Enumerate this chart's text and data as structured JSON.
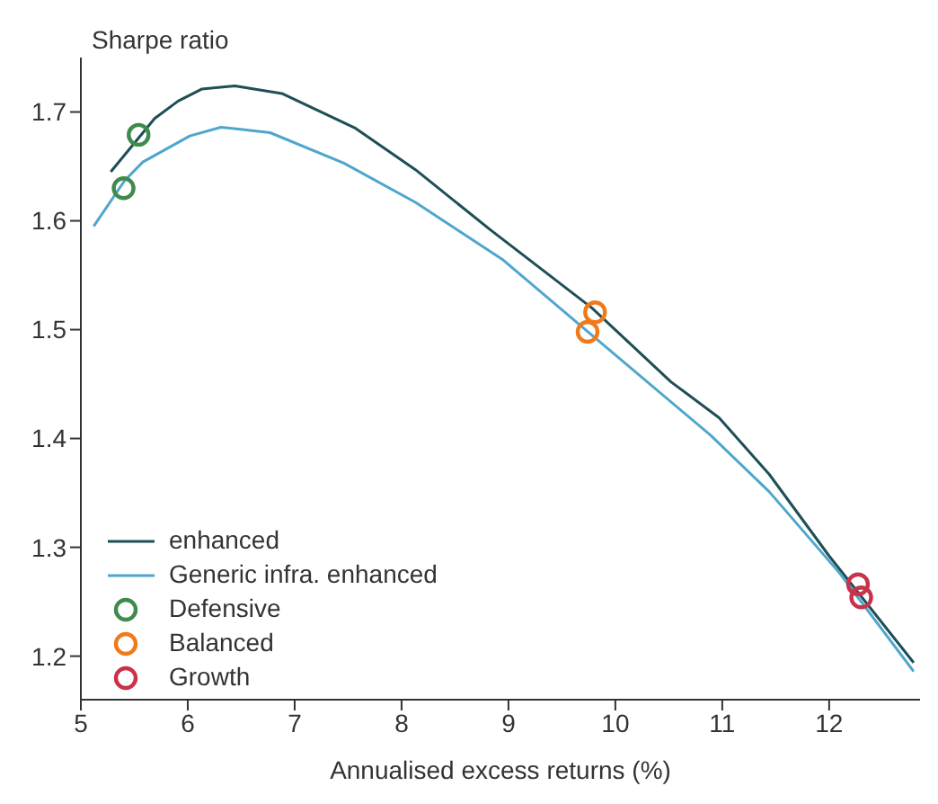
{
  "chart_data": {
    "type": "line",
    "ylabel": "Sharpe ratio",
    "xlabel": "Annualised excess returns (%)",
    "xlim": [
      5,
      12.85
    ],
    "ylim": [
      1.16,
      1.75
    ],
    "xticks": [
      5,
      6,
      7,
      8,
      9,
      10,
      11,
      12
    ],
    "yticks": [
      1.2,
      1.3,
      1.4,
      1.5,
      1.6,
      1.7
    ],
    "legend": "bottom left",
    "marker": "none",
    "line_style": "solid",
    "series": [
      {
        "name": "enhanced",
        "color": "#1d4f55",
        "x": [
          5.28,
          5.69,
          5.91,
          6.13,
          6.44,
          6.88,
          7.57,
          8.13,
          8.84,
          9.78,
          10.52,
          10.97,
          11.44,
          12.0,
          12.79
        ],
        "values": [
          1.645,
          1.694,
          1.71,
          1.721,
          1.724,
          1.717,
          1.685,
          1.647,
          1.591,
          1.52,
          1.452,
          1.419,
          1.367,
          1.292,
          1.194
        ]
      },
      {
        "name": "Generic infra. enhanced",
        "color": "#4fa6cc",
        "x": [
          5.12,
          5.41,
          5.58,
          6.02,
          6.31,
          6.77,
          7.46,
          8.13,
          8.95,
          9.78,
          10.89,
          11.44,
          12.1,
          12.79
        ],
        "values": [
          1.595,
          1.637,
          1.654,
          1.678,
          1.686,
          1.681,
          1.653,
          1.617,
          1.564,
          1.495,
          1.403,
          1.351,
          1.276,
          1.186
        ]
      },
      {
        "name": "Defensive",
        "type": "scatter",
        "marker": "circle",
        "color": "#3f8a4c",
        "x": [
          5.54,
          5.4
        ],
        "values": [
          1.679,
          1.63
        ]
      },
      {
        "name": "Balanced",
        "type": "scatter",
        "marker": "circle",
        "color": "#f07a1a",
        "x": [
          9.81,
          9.74
        ],
        "values": [
          1.516,
          1.498
        ]
      },
      {
        "name": "Growth",
        "type": "scatter",
        "marker": "circle",
        "color": "#c8324a",
        "x": [
          12.27,
          12.3
        ],
        "values": [
          1.266,
          1.254
        ]
      }
    ]
  }
}
